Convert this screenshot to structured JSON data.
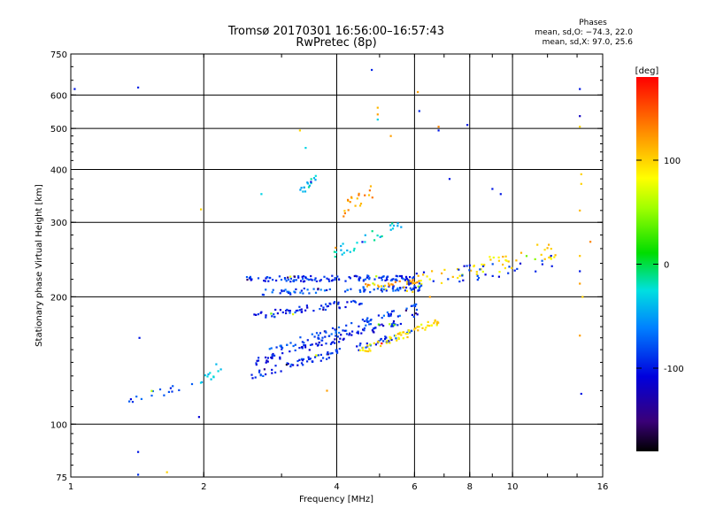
{
  "chart_data": {
    "type": "scatter",
    "title": "Tromsø 20170301 16:56:00–16:57:43",
    "subtitle": "RwPretec (8p)",
    "xlabel": "Frequency [MHz]",
    "ylabel": "Stationary phase Virtual Height [km]",
    "x_scale": "log",
    "y_scale": "log",
    "xlim": [
      1,
      16
    ],
    "ylim": [
      75,
      750
    ],
    "x_ticks": [
      1,
      2,
      4,
      6,
      8,
      10,
      16
    ],
    "x_tick_labels": [
      "1",
      "2",
      "4",
      "6",
      "8",
      "10",
      "16"
    ],
    "y_ticks": [
      75,
      100,
      200,
      300,
      400,
      500,
      600,
      750
    ],
    "y_tick_labels": [
      "75",
      "100",
      "200",
      "300",
      "400",
      "500",
      "600",
      "750"
    ],
    "x_gridlines": [
      2,
      4,
      6,
      8,
      10
    ],
    "y_gridlines": [
      100,
      200,
      300,
      400,
      500,
      600
    ],
    "grid": true,
    "phases_box": {
      "title": "Phases",
      "line1": "mean, sd,O: −74.3, 22.0",
      "line2": "mean, sd,X:  97.0, 25.6"
    },
    "colorbar": {
      "label": "[deg]",
      "range": [
        -180,
        180
      ],
      "ticks": [
        100,
        0,
        -100
      ],
      "tick_labels": [
        "100",
        "0",
        "-100"
      ]
    },
    "series": [
      {
        "traces": [
          {
            "f0": 1.3,
            "f1": 1.9,
            "h0": 112,
            "h1": 125,
            "phase": -85,
            "n": 16,
            "jitter": 0.025
          },
          {
            "f0": 1.9,
            "f1": 2.2,
            "h0": 122,
            "h1": 138,
            "phase": -40,
            "n": 12,
            "jitter": 0.03
          },
          {
            "f0": 2.55,
            "f1": 6.0,
            "h0": 130,
            "h1": 165,
            "phase": -92,
            "n": 90,
            "jitter": 0.02
          },
          {
            "f0": 2.6,
            "f1": 6.1,
            "h0": 140,
            "h1": 180,
            "phase": -100,
            "n": 90,
            "jitter": 0.02
          },
          {
            "f0": 2.8,
            "f1": 6.2,
            "h0": 150,
            "h1": 190,
            "phase": -82,
            "n": 80,
            "jitter": 0.02
          },
          {
            "f0": 2.6,
            "f1": 4.6,
            "h0": 180,
            "h1": 195,
            "phase": -95,
            "n": 60,
            "jitter": 0.02
          },
          {
            "f0": 2.5,
            "f1": 6.0,
            "h0": 220,
            "h1": 222,
            "phase": -90,
            "n": 120,
            "jitter": 0.015
          },
          {
            "f0": 2.7,
            "f1": 6.2,
            "h0": 205,
            "h1": 210,
            "phase": -80,
            "n": 80,
            "jitter": 0.015
          },
          {
            "f0": 4.5,
            "f1": 6.8,
            "h0": 148,
            "h1": 175,
            "phase": 95,
            "n": 60,
            "jitter": 0.02
          },
          {
            "f0": 4.6,
            "f1": 6.2,
            "h0": 212,
            "h1": 218,
            "phase": 115,
            "n": 30,
            "jitter": 0.012
          },
          {
            "f0": 5.6,
            "f1": 12.5,
            "h0": 210,
            "h1": 260,
            "phase": 95,
            "n": 60,
            "jitter": 0.05
          },
          {
            "f0": 5.8,
            "f1": 12.5,
            "h0": 215,
            "h1": 245,
            "phase": -95,
            "n": 40,
            "jitter": 0.05
          },
          {
            "f0": 3.3,
            "f1": 3.6,
            "h0": 350,
            "h1": 380,
            "phase": -30,
            "n": 16,
            "jitter": 0.03
          },
          {
            "f0": 4.1,
            "f1": 4.9,
            "h0": 320,
            "h1": 360,
            "phase": 120,
            "n": 20,
            "jitter": 0.04
          },
          {
            "f0": 3.9,
            "f1": 5.6,
            "h0": 250,
            "h1": 300,
            "phase": -30,
            "n": 30,
            "jitter": 0.04
          }
        ]
      }
    ],
    "scattered_points": [
      {
        "x": 1.02,
        "y": 620,
        "phase": -100
      },
      {
        "x": 1.42,
        "y": 625,
        "phase": -95
      },
      {
        "x": 1.43,
        "y": 160,
        "phase": -100
      },
      {
        "x": 1.42,
        "y": 86,
        "phase": -100
      },
      {
        "x": 1.42,
        "y": 76,
        "phase": -90
      },
      {
        "x": 1.65,
        "y": 77,
        "phase": 100
      },
      {
        "x": 1.95,
        "y": 104,
        "phase": -110
      },
      {
        "x": 1.97,
        "y": 322,
        "phase": 100
      },
      {
        "x": 4.8,
        "y": 688,
        "phase": -95
      },
      {
        "x": 4.95,
        "y": 560,
        "phase": 110
      },
      {
        "x": 4.95,
        "y": 540,
        "phase": 120
      },
      {
        "x": 4.95,
        "y": 525,
        "phase": -30
      },
      {
        "x": 5.3,
        "y": 480,
        "phase": 120
      },
      {
        "x": 6.1,
        "y": 610,
        "phase": 120
      },
      {
        "x": 6.15,
        "y": 550,
        "phase": -95
      },
      {
        "x": 6.8,
        "y": 505,
        "phase": 130
      },
      {
        "x": 6.8,
        "y": 495,
        "phase": -100
      },
      {
        "x": 7.9,
        "y": 510,
        "phase": -100
      },
      {
        "x": 3.3,
        "y": 495,
        "phase": 100
      },
      {
        "x": 3.4,
        "y": 450,
        "phase": -30
      },
      {
        "x": 9.0,
        "y": 360,
        "phase": -100
      },
      {
        "x": 9.4,
        "y": 350,
        "phase": -100
      },
      {
        "x": 14.2,
        "y": 620,
        "phase": -100
      },
      {
        "x": 14.2,
        "y": 535,
        "phase": -120
      },
      {
        "x": 14.2,
        "y": 505,
        "phase": 100
      },
      {
        "x": 14.3,
        "y": 390,
        "phase": 100
      },
      {
        "x": 14.3,
        "y": 370,
        "phase": 100
      },
      {
        "x": 14.2,
        "y": 320,
        "phase": 110
      },
      {
        "x": 14.2,
        "y": 250,
        "phase": 105
      },
      {
        "x": 14.2,
        "y": 230,
        "phase": -100
      },
      {
        "x": 14.2,
        "y": 215,
        "phase": 120
      },
      {
        "x": 14.4,
        "y": 200,
        "phase": 100
      },
      {
        "x": 14.2,
        "y": 162,
        "phase": 120
      },
      {
        "x": 14.3,
        "y": 118,
        "phase": -100
      },
      {
        "x": 15.0,
        "y": 270,
        "phase": 130
      },
      {
        "x": 3.8,
        "y": 120,
        "phase": 120
      },
      {
        "x": 6.5,
        "y": 200,
        "phase": 120
      },
      {
        "x": 7.2,
        "y": 380,
        "phase": -100
      },
      {
        "x": 2.7,
        "y": 350,
        "phase": -30
      }
    ]
  }
}
